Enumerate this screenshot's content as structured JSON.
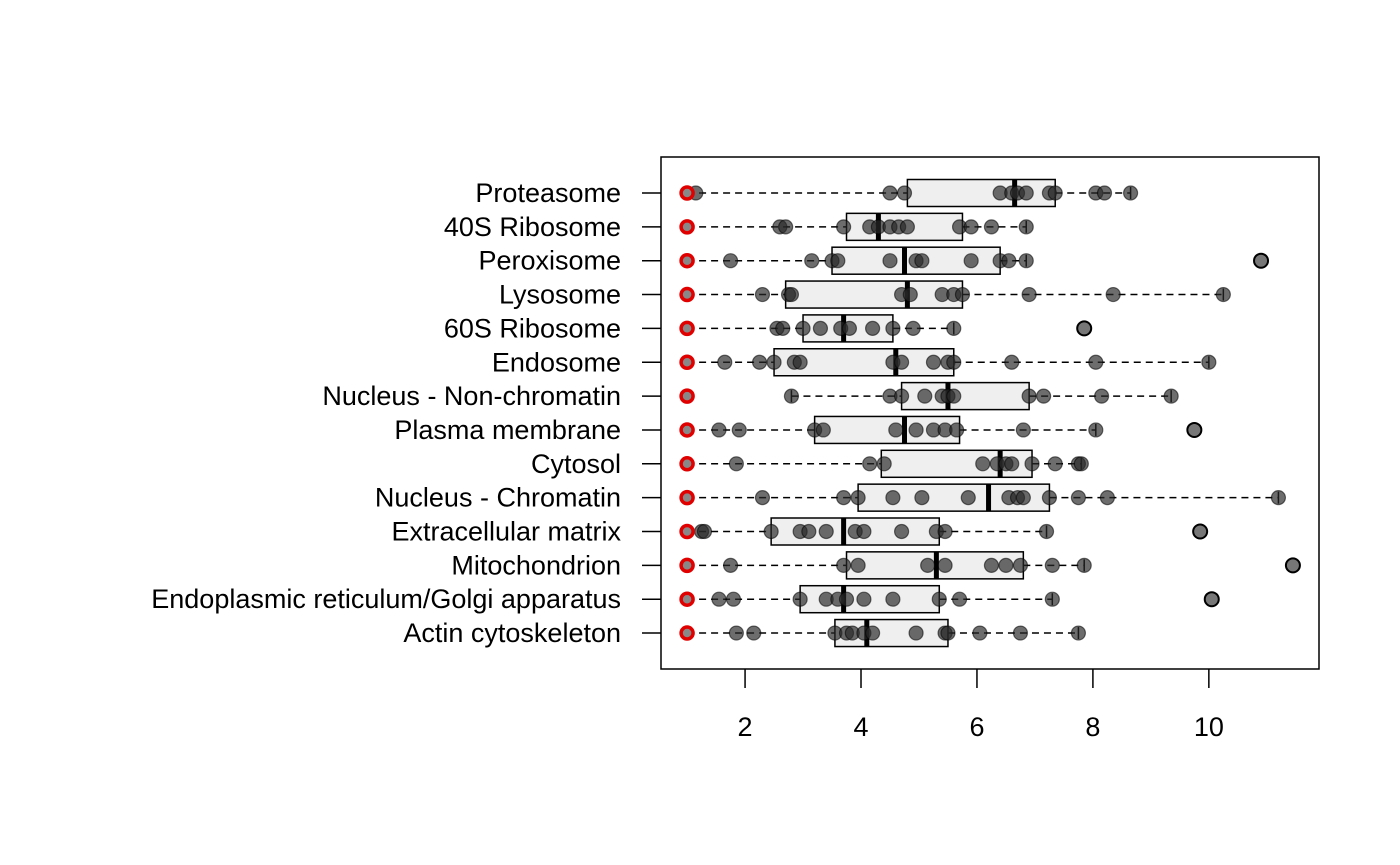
{
  "chart_data": {
    "type": "boxplot",
    "orientation": "horizontal",
    "title": "",
    "xlabel": "",
    "ylabel": "",
    "xlim": [
      0.55,
      11.9
    ],
    "x_ticks": [
      2,
      4,
      6,
      8,
      10
    ],
    "reference_marker": {
      "value": 1.0,
      "color": "#e00000"
    },
    "categories": [
      {
        "name": "Proteasome",
        "q1": 4.8,
        "median": 6.65,
        "q3": 7.35,
        "whisker_low": 1.0,
        "whisker_high": 8.65,
        "points": [
          1.15,
          4.5,
          4.75,
          6.4,
          6.6,
          6.7,
          6.85,
          7.25,
          7.35,
          8.05,
          8.2,
          8.65
        ],
        "outliers": []
      },
      {
        "name": "40S Ribosome",
        "q1": 3.75,
        "median": 4.3,
        "q3": 5.75,
        "whisker_low": 1.0,
        "whisker_high": 6.85,
        "points": [
          2.6,
          2.7,
          3.7,
          4.15,
          4.3,
          4.5,
          4.65,
          4.8,
          5.7,
          5.9,
          6.25,
          6.85
        ],
        "outliers": []
      },
      {
        "name": "Peroxisome",
        "q1": 3.5,
        "median": 4.75,
        "q3": 6.4,
        "whisker_low": 1.0,
        "whisker_high": 6.85,
        "points": [
          1.75,
          3.15,
          3.5,
          3.6,
          4.5,
          4.95,
          5.05,
          5.9,
          6.4,
          6.55,
          6.85
        ],
        "outliers": [
          10.9
        ]
      },
      {
        "name": "Lysosome",
        "q1": 2.7,
        "median": 4.8,
        "q3": 5.75,
        "whisker_low": 1.0,
        "whisker_high": 10.25,
        "points": [
          2.3,
          2.75,
          2.8,
          4.7,
          4.85,
          5.4,
          5.6,
          5.75,
          6.9,
          8.35,
          10.25
        ],
        "outliers": []
      },
      {
        "name": "60S Ribosome",
        "q1": 3.0,
        "median": 3.7,
        "q3": 4.55,
        "whisker_low": 1.0,
        "whisker_high": 5.6,
        "points": [
          2.55,
          2.65,
          3.0,
          3.3,
          3.65,
          3.8,
          4.2,
          4.55,
          4.9,
          5.6
        ],
        "outliers": [
          7.85
        ]
      },
      {
        "name": "Endosome",
        "q1": 2.5,
        "median": 4.6,
        "q3": 5.6,
        "whisker_low": 1.0,
        "whisker_high": 10.0,
        "points": [
          1.65,
          2.25,
          2.5,
          2.85,
          2.95,
          4.55,
          4.7,
          5.25,
          5.5,
          5.6,
          6.6,
          8.05,
          10.0
        ],
        "outliers": []
      },
      {
        "name": "Nucleus - Non-chromatin",
        "q1": 4.7,
        "median": 5.5,
        "q3": 6.9,
        "whisker_low": 2.8,
        "whisker_high": 9.35,
        "points": [
          2.8,
          4.5,
          4.7,
          5.1,
          5.4,
          5.5,
          5.6,
          6.9,
          7.15,
          8.15,
          9.35
        ],
        "outliers": []
      },
      {
        "name": "Plasma membrane",
        "q1": 3.2,
        "median": 4.75,
        "q3": 5.7,
        "whisker_low": 1.0,
        "whisker_high": 8.05,
        "points": [
          1.55,
          1.9,
          3.2,
          3.35,
          4.6,
          4.95,
          5.25,
          5.45,
          5.65,
          6.8,
          8.05
        ],
        "outliers": [
          9.75
        ]
      },
      {
        "name": "Cytosol",
        "q1": 4.35,
        "median": 6.4,
        "q3": 6.95,
        "whisker_low": 1.0,
        "whisker_high": 7.8,
        "points": [
          1.85,
          4.15,
          4.4,
          6.1,
          6.35,
          6.5,
          6.6,
          6.95,
          7.35,
          7.75,
          7.8
        ],
        "outliers": []
      },
      {
        "name": "Nucleus - Chromatin",
        "q1": 3.95,
        "median": 6.2,
        "q3": 7.25,
        "whisker_low": 1.0,
        "whisker_high": 11.2,
        "points": [
          2.3,
          3.7,
          3.95,
          4.55,
          5.05,
          5.85,
          6.55,
          6.7,
          6.8,
          7.25,
          7.75,
          8.25,
          11.2
        ],
        "outliers": []
      },
      {
        "name": "Extracellular matrix",
        "q1": 2.45,
        "median": 3.7,
        "q3": 5.35,
        "whisker_low": 1.0,
        "whisker_high": 7.2,
        "points": [
          1.25,
          1.3,
          2.45,
          2.95,
          3.1,
          3.4,
          3.9,
          4.05,
          4.7,
          5.3,
          5.45,
          7.2
        ],
        "outliers": [
          9.85
        ]
      },
      {
        "name": "Mitochondrion",
        "q1": 3.75,
        "median": 5.3,
        "q3": 6.8,
        "whisker_low": 1.0,
        "whisker_high": 7.85,
        "points": [
          1.75,
          3.7,
          3.95,
          5.15,
          5.45,
          6.25,
          6.5,
          6.75,
          7.3,
          7.85
        ],
        "outliers": [
          11.45
        ]
      },
      {
        "name": "Endoplasmic reticulum/Golgi apparatus",
        "q1": 2.95,
        "median": 3.7,
        "q3": 5.35,
        "whisker_low": 1.0,
        "whisker_high": 7.3,
        "points": [
          1.55,
          1.8,
          2.95,
          3.4,
          3.6,
          3.75,
          4.05,
          4.55,
          5.35,
          5.7,
          7.3
        ],
        "outliers": [
          10.05
        ]
      },
      {
        "name": "Actin cytoskeleton",
        "q1": 3.55,
        "median": 4.1,
        "q3": 5.5,
        "whisker_low": 1.0,
        "whisker_high": 7.75,
        "points": [
          1.85,
          2.15,
          3.55,
          3.75,
          3.85,
          4.05,
          4.2,
          4.95,
          5.45,
          5.5,
          6.05,
          6.75,
          7.75
        ],
        "outliers": []
      }
    ]
  }
}
